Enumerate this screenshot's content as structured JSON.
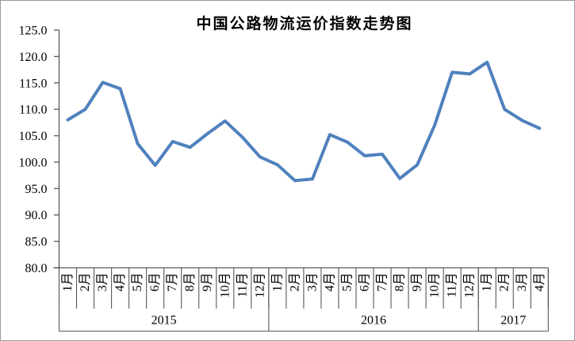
{
  "chart_data": {
    "type": "line",
    "title": "中国公路物流运价指数走势图",
    "xlabel": "",
    "ylabel": "",
    "ylim": [
      80.0,
      125.0
    ],
    "y_tick_step": 5.0,
    "y_tick_labels": [
      "125.0",
      "120.0",
      "115.0",
      "110.0",
      "105.0",
      "100.0",
      "95.0",
      "90.0",
      "85.0",
      "80.0"
    ],
    "grid": false,
    "legend": "none",
    "x_axis_groups": [
      {
        "year": "2015",
        "months": [
          "1月",
          "2月",
          "3月",
          "4月",
          "5月",
          "6月",
          "7月",
          "8月",
          "9月",
          "10月",
          "11月",
          "12月"
        ]
      },
      {
        "year": "2016",
        "months": [
          "1月",
          "2月",
          "3月",
          "4月",
          "5月",
          "6月",
          "7月",
          "8月",
          "9月",
          "10月",
          "11月",
          "12月"
        ]
      },
      {
        "year": "2017",
        "months": [
          "1月",
          "2月",
          "3月",
          "4月"
        ]
      }
    ],
    "series": [
      {
        "name": "中国公路物流运价指数",
        "values": [
          108.0,
          110.0,
          115.1,
          113.9,
          103.5,
          99.4,
          103.9,
          102.8,
          105.4,
          107.8,
          104.7,
          101.0,
          99.5,
          96.5,
          96.8,
          105.2,
          103.8,
          101.2,
          101.5,
          96.9,
          99.5,
          107.0,
          117.0,
          116.7,
          118.9,
          110.0,
          107.9,
          106.4
        ]
      }
    ],
    "colors": {
      "line": "#4F81BD",
      "axis": "#595959",
      "text": "#000000",
      "border": "#9a9a9a",
      "background": "#ffffff"
    }
  }
}
